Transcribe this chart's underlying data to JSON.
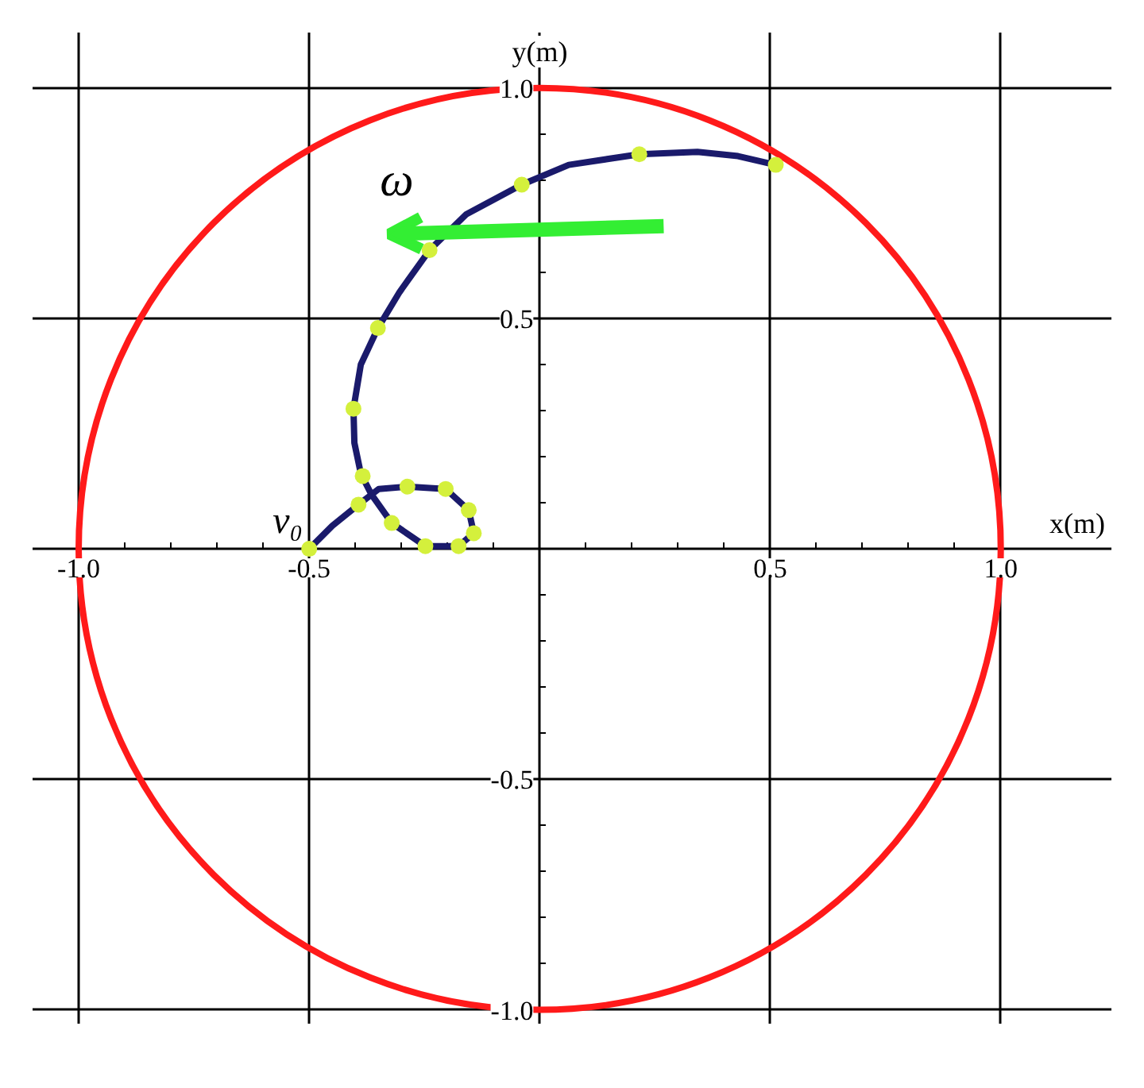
{
  "chart_data": {
    "type": "line",
    "xlabel": "x(m)",
    "ylabel": "y(m)",
    "xlim": [
      -1.1,
      1.24
    ],
    "ylim": [
      -1.03,
      1.12
    ],
    "grid": true,
    "xticks": [
      {
        "value": -1,
        "label": "-1.0"
      },
      {
        "value": -0.5,
        "label": "-0.5"
      },
      {
        "value": 0.5,
        "label": "0.5"
      },
      {
        "value": 1,
        "label": "1.0"
      },
      {
        "value": -0.9,
        "label": null
      },
      {
        "value": -0.8,
        "label": null
      },
      {
        "value": -0.7,
        "label": null
      },
      {
        "value": -0.6,
        "label": null
      },
      {
        "value": -0.4,
        "label": null
      },
      {
        "value": -0.3,
        "label": null
      },
      {
        "value": -0.2,
        "label": null
      },
      {
        "value": -0.1,
        "label": null
      },
      {
        "value": 0.1,
        "label": null
      },
      {
        "value": 0.2,
        "label": null
      },
      {
        "value": 0.3,
        "label": null
      },
      {
        "value": 0.4,
        "label": null
      },
      {
        "value": 0.6,
        "label": null
      },
      {
        "value": 0.7,
        "label": null
      },
      {
        "value": 0.8,
        "label": null
      },
      {
        "value": 0.9,
        "label": null
      }
    ],
    "yticks": [
      {
        "value": -1,
        "label": "-1.0"
      },
      {
        "value": -0.5,
        "label": "-0.5"
      },
      {
        "value": 0.5,
        "label": "0.5"
      },
      {
        "value": 1,
        "label": "1.0"
      },
      {
        "value": -0.9,
        "label": null
      },
      {
        "value": -0.8,
        "label": null
      },
      {
        "value": -0.7,
        "label": null
      },
      {
        "value": -0.6,
        "label": null
      },
      {
        "value": -0.4,
        "label": null
      },
      {
        "value": -0.3,
        "label": null
      },
      {
        "value": -0.2,
        "label": null
      },
      {
        "value": -0.1,
        "label": null
      },
      {
        "value": 0.1,
        "label": null
      },
      {
        "value": 0.2,
        "label": null
      },
      {
        "value": 0.3,
        "label": null
      },
      {
        "value": 0.4,
        "label": null
      },
      {
        "value": 0.6,
        "label": null
      },
      {
        "value": 0.7,
        "label": null
      },
      {
        "value": 0.8,
        "label": null
      },
      {
        "value": 0.9,
        "label": null
      }
    ],
    "annotations": [
      "ω",
      "v₀"
    ],
    "series": [
      {
        "color": "#1a1a6b",
        "x": [
          -0.5,
          -0.45,
          -0.393,
          -0.349,
          -0.287,
          -0.204,
          -0.154,
          -0.143,
          -0.176,
          -0.248,
          -0.321,
          -0.365,
          -0.388,
          -0.402,
          -0.404,
          -0.388,
          -0.351,
          -0.304,
          -0.239,
          -0.159,
          -0.039,
          0.063,
          0.216,
          0.342,
          0.43,
          0.512
        ],
        "values": [
          0,
          0.05,
          0.096,
          0.13,
          0.135,
          0.13,
          0.084,
          0.034,
          0.006,
          0.006,
          0.056,
          0.118,
          0.163,
          0.23,
          0.304,
          0.4,
          0.479,
          0.557,
          0.648,
          0.726,
          0.79,
          0.833,
          0.856,
          0.861,
          0.852,
          0.833
        ]
      },
      {
        "type": "scatter",
        "color": "#d4f03c",
        "marker": "circle",
        "x": [
          -0.5,
          -0.393,
          -0.287,
          -0.204,
          -0.154,
          -0.143,
          -0.176,
          -0.248,
          -0.321,
          -0.384,
          -0.404,
          -0.351,
          -0.239,
          -0.039,
          0.216,
          0.512
        ],
        "values": [
          0,
          0.096,
          0.135,
          0.13,
          0.084,
          0.034,
          0.006,
          0.006,
          0.056,
          0.158,
          0.304,
          0.479,
          0.648,
          0.79,
          0.856,
          0.833
        ]
      }
    ]
  }
}
